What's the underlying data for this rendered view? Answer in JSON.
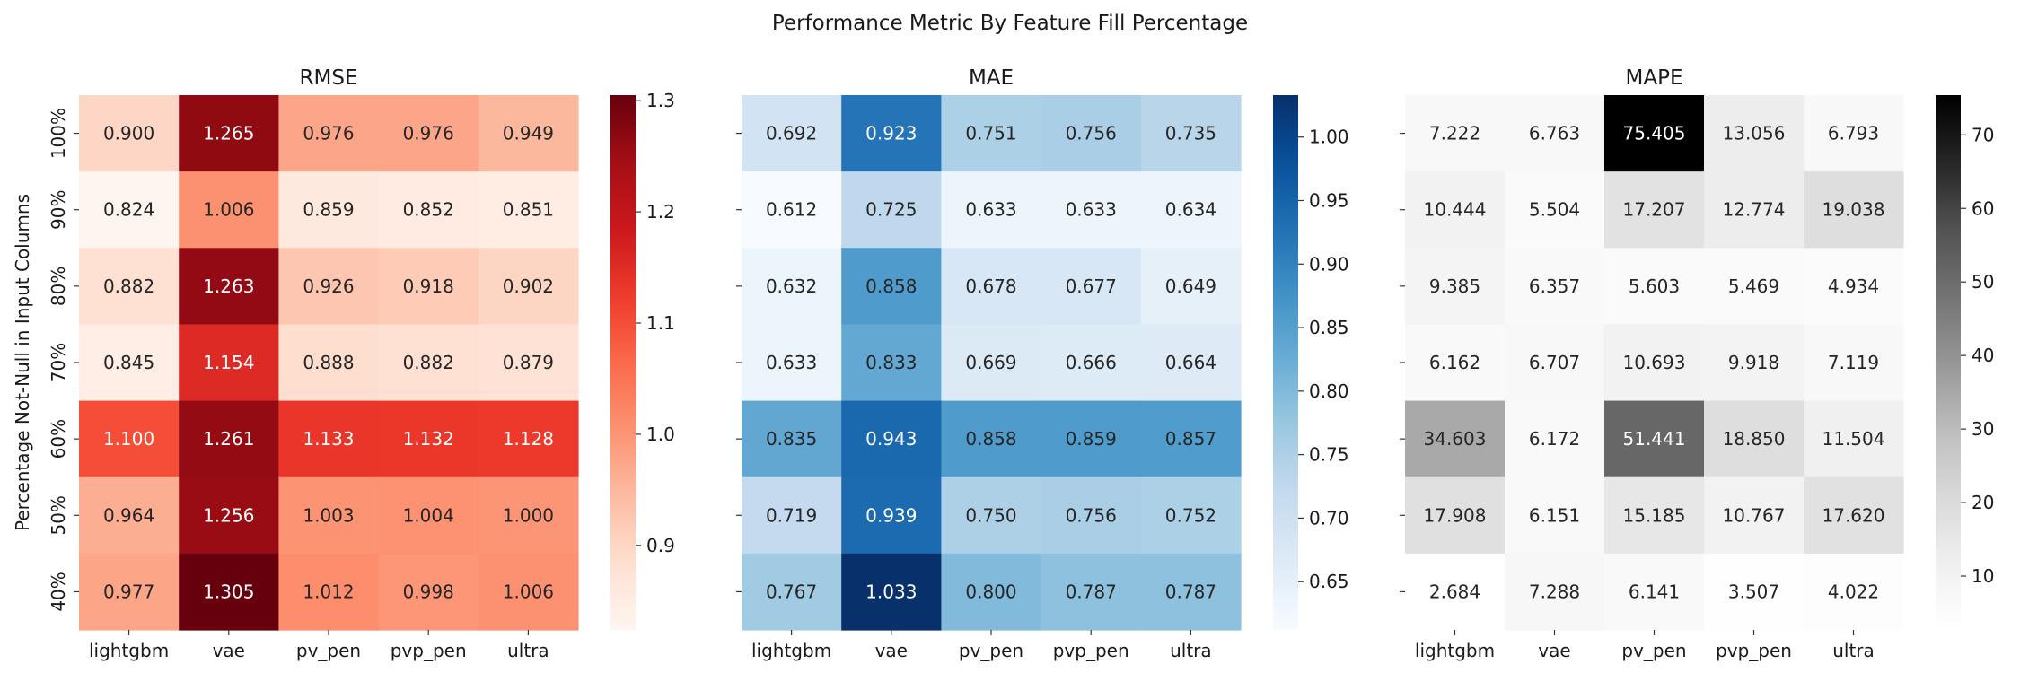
{
  "suptitle": "Performance Metric By Feature Fill Percentage",
  "chart_data": [
    {
      "type": "heatmap",
      "title": "RMSE",
      "colormap": "Reds",
      "ylabel": "Percentage Not-Null in Input Columns",
      "xlabel": "",
      "columns": [
        "lightgbm",
        "vae",
        "pv_pen",
        "pvp_pen",
        "ultra"
      ],
      "rows": [
        "100%",
        "90%",
        "80%",
        "70%",
        "60%",
        "50%",
        "40%"
      ],
      "values": [
        [
          0.9,
          1.265,
          0.976,
          0.976,
          0.949
        ],
        [
          0.824,
          1.006,
          0.859,
          0.852,
          0.851
        ],
        [
          0.882,
          1.263,
          0.926,
          0.918,
          0.902
        ],
        [
          0.845,
          1.154,
          0.888,
          0.882,
          0.879
        ],
        [
          1.1,
          1.261,
          1.133,
          1.132,
          1.128
        ],
        [
          0.964,
          1.256,
          1.003,
          1.004,
          1.0
        ],
        [
          0.977,
          1.305,
          1.012,
          0.998,
          1.006
        ]
      ],
      "colorbar_ticks": [
        "0.9",
        "1.0",
        "1.1",
        "1.2",
        "1.3"
      ],
      "show_row_labels": true
    },
    {
      "type": "heatmap",
      "title": "MAE",
      "colormap": "Blues",
      "ylabel": "",
      "xlabel": "",
      "columns": [
        "lightgbm",
        "vae",
        "pv_pen",
        "pvp_pen",
        "ultra"
      ],
      "rows": [
        "100%",
        "90%",
        "80%",
        "70%",
        "60%",
        "50%",
        "40%"
      ],
      "values": [
        [
          0.692,
          0.923,
          0.751,
          0.756,
          0.735
        ],
        [
          0.612,
          0.725,
          0.633,
          0.633,
          0.634
        ],
        [
          0.632,
          0.858,
          0.678,
          0.677,
          0.649
        ],
        [
          0.633,
          0.833,
          0.669,
          0.666,
          0.664
        ],
        [
          0.835,
          0.943,
          0.858,
          0.859,
          0.857
        ],
        [
          0.719,
          0.939,
          0.75,
          0.756,
          0.752
        ],
        [
          0.767,
          1.033,
          0.8,
          0.787,
          0.787
        ]
      ],
      "colorbar_ticks": [
        "0.65",
        "0.70",
        "0.75",
        "0.80",
        "0.85",
        "0.90",
        "0.95",
        "1.00"
      ],
      "show_row_labels": false
    },
    {
      "type": "heatmap",
      "title": "MAPE",
      "colormap": "Greys",
      "ylabel": "",
      "xlabel": "",
      "columns": [
        "lightgbm",
        "vae",
        "pv_pen",
        "pvp_pen",
        "ultra"
      ],
      "rows": [
        "100%",
        "90%",
        "80%",
        "70%",
        "60%",
        "50%",
        "40%"
      ],
      "values": [
        [
          7.222,
          6.763,
          75.405,
          13.056,
          6.793
        ],
        [
          10.444,
          5.504,
          17.207,
          12.774,
          19.038
        ],
        [
          9.385,
          6.357,
          5.603,
          5.469,
          4.934
        ],
        [
          6.162,
          6.707,
          10.693,
          9.918,
          7.119
        ],
        [
          34.603,
          6.172,
          51.441,
          18.85,
          11.504
        ],
        [
          17.908,
          6.151,
          15.185,
          10.767,
          17.62
        ],
        [
          2.684,
          7.288,
          6.141,
          3.507,
          4.022
        ]
      ],
      "colorbar_ticks": [
        "10",
        "20",
        "30",
        "40",
        "50",
        "60",
        "70"
      ],
      "show_row_labels": false
    }
  ]
}
